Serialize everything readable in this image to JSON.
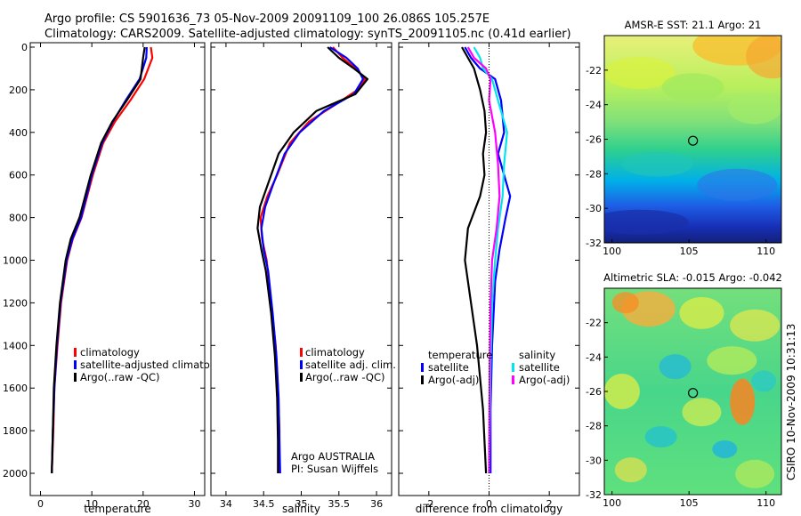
{
  "header": {
    "title_line1": "Argo profile: CS 5901636_73 05-Nov-2009 20091109_100 26.086S 105.257E",
    "title_line2": "Climatology: CARS2009. Satellite-adjusted climatology: synTS_20091105.nc (0.41d earlier)"
  },
  "footer": {
    "credit": "CSIRO 10-Nov-2009 10:31:13"
  },
  "colors": {
    "red": "#ff0000",
    "blue": "#0000ff",
    "black": "#000000",
    "cyan": "#00e5ee",
    "magenta": "#ff00ff"
  },
  "chart_data": [
    {
      "id": "temperature",
      "type": "line",
      "xlabel": "temperature",
      "xlim": [
        -2,
        32
      ],
      "ylim": [
        0,
        2000
      ],
      "y_reversed": true,
      "xticks": [
        0,
        10,
        20,
        30
      ],
      "yticks": [
        0,
        200,
        400,
        600,
        800,
        1000,
        1200,
        1400,
        1600,
        1800,
        2000
      ],
      "legend": [
        "climatology",
        "satellite-adjusted climatology",
        "Argo(..raw -QC)"
      ],
      "series": [
        {
          "name": "climatology",
          "color": "red",
          "points": [
            [
              21.5,
              0
            ],
            [
              21.8,
              50
            ],
            [
              20.2,
              150
            ],
            [
              17.5,
              250
            ],
            [
              14.5,
              350
            ],
            [
              12.2,
              450
            ],
            [
              10.2,
              600
            ],
            [
              8.0,
              800
            ],
            [
              6.3,
              900
            ],
            [
              5.2,
              1000
            ],
            [
              4.0,
              1200
            ],
            [
              3.3,
              1400
            ],
            [
              2.7,
              1600
            ],
            [
              2.5,
              1800
            ],
            [
              2.2,
              2000
            ]
          ]
        },
        {
          "name": "satellite-adjusted climatology",
          "color": "blue",
          "points": [
            [
              20.7,
              0
            ],
            [
              20.6,
              50
            ],
            [
              19.3,
              150
            ],
            [
              16.6,
              250
            ],
            [
              14.1,
              350
            ],
            [
              12.0,
              450
            ],
            [
              10.0,
              600
            ],
            [
              7.9,
              800
            ],
            [
              6.2,
              900
            ],
            [
              5.1,
              1000
            ],
            [
              3.9,
              1200
            ],
            [
              3.2,
              1400
            ],
            [
              2.7,
              1600
            ],
            [
              2.4,
              1800
            ],
            [
              2.2,
              2000
            ]
          ]
        },
        {
          "name": "Argo(..raw -QC)",
          "color": "black",
          "points": [
            [
              20.3,
              0
            ],
            [
              20.0,
              50
            ],
            [
              19.5,
              150
            ],
            [
              16.8,
              250
            ],
            [
              14.0,
              350
            ],
            [
              11.8,
              450
            ],
            [
              9.8,
              600
            ],
            [
              7.6,
              800
            ],
            [
              5.9,
              900
            ],
            [
              4.9,
              1000
            ],
            [
              3.8,
              1200
            ],
            [
              3.1,
              1400
            ],
            [
              2.6,
              1600
            ],
            [
              2.4,
              1800
            ],
            [
              2.2,
              2000
            ]
          ]
        }
      ]
    },
    {
      "id": "salinity",
      "type": "line",
      "xlabel": "salinity",
      "xlim": [
        33.8,
        36.2
      ],
      "ylim": [
        0,
        2000
      ],
      "y_reversed": true,
      "xticks": [
        34,
        34.5,
        35,
        35.5,
        36
      ],
      "legend": [
        "climatology",
        "satellite adj. clim.",
        "Argo(..raw -QC)"
      ],
      "annotations": [
        "Argo AUSTRALIA",
        "PI: Susan Wijffels"
      ],
      "series": [
        {
          "name": "climatology",
          "color": "red",
          "points": [
            [
              35.42,
              0
            ],
            [
              35.55,
              50
            ],
            [
              35.72,
              100
            ],
            [
              35.85,
              150
            ],
            [
              35.75,
              200
            ],
            [
              35.45,
              270
            ],
            [
              35.1,
              350
            ],
            [
              34.85,
              450
            ],
            [
              34.68,
              600
            ],
            [
              34.55,
              700
            ],
            [
              34.46,
              800
            ],
            [
              34.48,
              900
            ],
            [
              34.54,
              1000
            ],
            [
              34.6,
              1200
            ],
            [
              34.66,
              1400
            ],
            [
              34.69,
              1600
            ],
            [
              34.71,
              1800
            ],
            [
              34.71,
              2000
            ]
          ]
        },
        {
          "name": "satellite adj. clim.",
          "color": "blue",
          "points": [
            [
              35.38,
              0
            ],
            [
              35.6,
              50
            ],
            [
              35.75,
              100
            ],
            [
              35.82,
              150
            ],
            [
              35.7,
              220
            ],
            [
              35.3,
              300
            ],
            [
              34.98,
              400
            ],
            [
              34.78,
              500
            ],
            [
              34.62,
              650
            ],
            [
              34.52,
              750
            ],
            [
              34.47,
              850
            ],
            [
              34.5,
              950
            ],
            [
              34.56,
              1050
            ],
            [
              34.62,
              1250
            ],
            [
              34.67,
              1450
            ],
            [
              34.7,
              1650
            ],
            [
              34.71,
              1850
            ],
            [
              34.72,
              2000
            ]
          ]
        },
        {
          "name": "Argo(..raw -QC)",
          "color": "black",
          "points": [
            [
              35.35,
              0
            ],
            [
              35.5,
              50
            ],
            [
              35.7,
              100
            ],
            [
              35.88,
              150
            ],
            [
              35.72,
              220
            ],
            [
              35.2,
              300
            ],
            [
              34.9,
              400
            ],
            [
              34.7,
              500
            ],
            [
              34.55,
              650
            ],
            [
              34.45,
              750
            ],
            [
              34.42,
              850
            ],
            [
              34.47,
              950
            ],
            [
              34.53,
              1050
            ],
            [
              34.6,
              1250
            ],
            [
              34.65,
              1450
            ],
            [
              34.68,
              1650
            ],
            [
              34.69,
              1850
            ],
            [
              34.69,
              2000
            ]
          ]
        }
      ]
    },
    {
      "id": "difference",
      "type": "line",
      "xlabel": "difference from climatology",
      "xlim": [
        -3,
        3
      ],
      "ylim": [
        0,
        2000
      ],
      "y_reversed": true,
      "xticks": [
        -2,
        0,
        2
      ],
      "legend_titles": [
        "temperature",
        "salinity"
      ],
      "legend": [
        "satellite",
        "Argo(-adj)",
        "satellite",
        "Argo(-adj)"
      ],
      "series": [
        {
          "name": "temperature satellite",
          "color": "blue",
          "points": [
            [
              -0.8,
              0
            ],
            [
              -0.6,
              50
            ],
            [
              -0.3,
              100
            ],
            [
              0.2,
              150
            ],
            [
              0.4,
              250
            ],
            [
              0.5,
              400
            ],
            [
              0.3,
              500
            ],
            [
              0.5,
              600
            ],
            [
              0.7,
              700
            ],
            [
              0.55,
              800
            ],
            [
              0.35,
              950
            ],
            [
              0.2,
              1100
            ],
            [
              0.1,
              1400
            ],
            [
              0.05,
              1700
            ],
            [
              0.05,
              2000
            ]
          ]
        },
        {
          "name": "temperature Argo(-adj)",
          "color": "black",
          "points": [
            [
              -0.9,
              0
            ],
            [
              -0.7,
              50
            ],
            [
              -0.5,
              100
            ],
            [
              -0.3,
              200
            ],
            [
              -0.15,
              300
            ],
            [
              -0.1,
              400
            ],
            [
              -0.2,
              500
            ],
            [
              -0.15,
              600
            ],
            [
              -0.3,
              700
            ],
            [
              -0.7,
              850
            ],
            [
              -0.8,
              1000
            ],
            [
              -0.6,
              1200
            ],
            [
              -0.4,
              1400
            ],
            [
              -0.2,
              1700
            ],
            [
              -0.1,
              2000
            ]
          ]
        },
        {
          "name": "salinity satellite",
          "color": "cyan",
          "points": [
            [
              -0.5,
              0
            ],
            [
              -0.3,
              50
            ],
            [
              -0.2,
              100
            ],
            [
              0.1,
              150
            ],
            [
              0.3,
              250
            ],
            [
              0.6,
              400
            ],
            [
              0.5,
              550
            ],
            [
              0.45,
              700
            ],
            [
              0.3,
              850
            ],
            [
              0.2,
              1000
            ],
            [
              0.1,
              1200
            ],
            [
              0.05,
              1500
            ],
            [
              0.02,
              1800
            ],
            [
              0.0,
              2000
            ]
          ]
        },
        {
          "name": "salinity Argo(-adj)",
          "color": "magenta",
          "points": [
            [
              -0.7,
              0
            ],
            [
              -0.5,
              50
            ],
            [
              -0.1,
              100
            ],
            [
              0.05,
              150
            ],
            [
              0.0,
              250
            ],
            [
              0.2,
              400
            ],
            [
              0.3,
              550
            ],
            [
              0.35,
              700
            ],
            [
              0.25,
              850
            ],
            [
              0.1,
              1000
            ],
            [
              0.05,
              1200
            ],
            [
              0.02,
              1500
            ],
            [
              0.01,
              1800
            ],
            [
              0.0,
              2000
            ]
          ]
        }
      ]
    },
    {
      "id": "sst_map",
      "type": "heatmap",
      "title": "AMSR-E SST: 21.1 Argo: 21",
      "xlim": [
        99.5,
        111
      ],
      "ylim": [
        -32,
        -20
      ],
      "xticks": [
        100,
        105,
        110
      ],
      "yticks": [
        -22,
        -24,
        -26,
        -28,
        -30,
        -32
      ],
      "marker": [
        105.257,
        -26.086
      ]
    },
    {
      "id": "sla_map",
      "type": "heatmap",
      "title": "Altimetric SLA: -0.015 Argo: -0.042",
      "xlim": [
        99.5,
        111
      ],
      "ylim": [
        -32,
        -20
      ],
      "xticks": [
        100,
        105,
        110
      ],
      "yticks": [
        -22,
        -24,
        -26,
        -28,
        -30,
        -32
      ],
      "marker": [
        105.257,
        -26.086
      ]
    }
  ]
}
